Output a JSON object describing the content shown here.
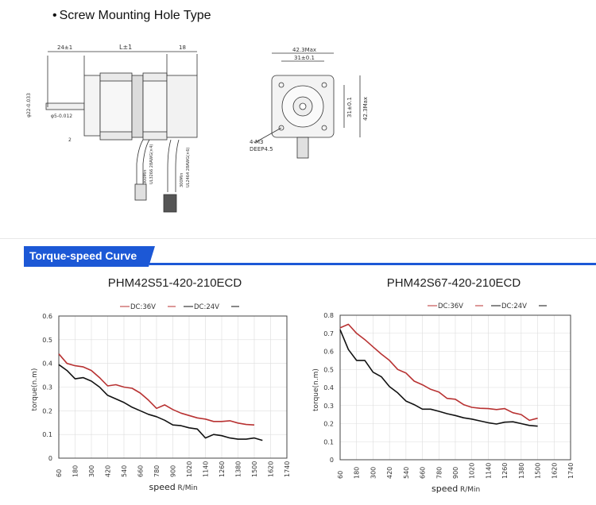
{
  "section_title": "Screw Mounting Hole Type",
  "drawing_side": {
    "dim_24": "24±1",
    "dim_L": "L±1",
    "dim_18": "18",
    "dim_phi22": "φ22-0.033",
    "dim_phi5": "φ5-0.012",
    "dim_2": "2",
    "cable_1": "300Min",
    "cable_2": "UL3266 28AWG(×4)",
    "cable_3": "300Min",
    "cable_4": "UL2464 28AWG(×6)"
  },
  "drawing_front": {
    "dim_max": "42.3Max",
    "dim_31": "31±0.1",
    "dim_31_v": "31±0.1",
    "dim_max_v": "42.3Max",
    "screw": "4-M3",
    "depth": "DEEP4.5"
  },
  "section_badge": "Torque-speed Curve",
  "colors": {
    "badge": "#1c58d6",
    "dc36": "#b83232",
    "dc24": "#111111",
    "grid": "#dddddd"
  },
  "chart_data": [
    {
      "type": "line",
      "title": "PHM42S51-420-210ECD",
      "xlabel": "speed",
      "xunit": "R/Min",
      "ylabel": "torque(n.m)",
      "categories": [
        "60",
        "180",
        "300",
        "420",
        "540",
        "660",
        "780",
        "900",
        "1020",
        "1140",
        "1260",
        "1380",
        "1500",
        "1620",
        "1740"
      ],
      "y_ticks": [
        "0",
        "0.1",
        "0.2",
        "0.3",
        "0.4",
        "0.5",
        "0.6"
      ],
      "ylim": [
        0,
        0.6
      ],
      "xlim": [
        60,
        1740
      ],
      "legend_position": "top-right",
      "series": [
        {
          "name": "DC:36V",
          "color": "#b83232",
          "x": [
            60,
            120,
            180,
            240,
            300,
            360,
            420,
            480,
            540,
            600,
            660,
            720,
            780,
            840,
            900,
            960,
            1020,
            1080,
            1140,
            1200,
            1260,
            1320,
            1380,
            1440,
            1500
          ],
          "y": [
            0.44,
            0.4,
            0.39,
            0.385,
            0.37,
            0.34,
            0.305,
            0.31,
            0.3,
            0.295,
            0.275,
            0.245,
            0.21,
            0.225,
            0.205,
            0.19,
            0.18,
            0.17,
            0.165,
            0.155,
            0.155,
            0.158,
            0.148,
            0.142,
            0.14
          ]
        },
        {
          "name": "DC:24V",
          "color": "#111111",
          "x": [
            60,
            120,
            180,
            240,
            300,
            360,
            420,
            480,
            540,
            600,
            660,
            720,
            780,
            840,
            900,
            960,
            1020,
            1080,
            1140,
            1200,
            1260,
            1320,
            1380,
            1440,
            1500,
            1560
          ],
          "y": [
            0.395,
            0.37,
            0.335,
            0.34,
            0.325,
            0.3,
            0.265,
            0.25,
            0.235,
            0.215,
            0.2,
            0.185,
            0.175,
            0.16,
            0.14,
            0.137,
            0.128,
            0.123,
            0.085,
            0.1,
            0.095,
            0.085,
            0.08,
            0.08,
            0.085,
            0.075
          ]
        }
      ]
    },
    {
      "type": "line",
      "title": "PHM42S67-420-210ECD",
      "xlabel": "speed",
      "xunit": "R/Min",
      "ylabel": "torque(n.m)",
      "categories": [
        "60",
        "180",
        "300",
        "420",
        "540",
        "660",
        "780",
        "900",
        "1020",
        "1140",
        "1260",
        "1380",
        "1500",
        "1620",
        "1740"
      ],
      "y_ticks": [
        "0",
        "0.1",
        "0.2",
        "0.3",
        "0.4",
        "0.5",
        "0.6",
        "0.7",
        "0.8"
      ],
      "ylim": [
        0,
        0.8
      ],
      "xlim": [
        60,
        1740
      ],
      "legend_position": "top-right",
      "series": [
        {
          "name": "DC:36V",
          "color": "#b83232",
          "x": [
            60,
            120,
            180,
            240,
            300,
            360,
            420,
            480,
            540,
            600,
            660,
            720,
            780,
            840,
            900,
            960,
            1020,
            1080,
            1140,
            1200,
            1260,
            1320,
            1380,
            1440,
            1500
          ],
          "y": [
            0.73,
            0.75,
            0.7,
            0.665,
            0.625,
            0.585,
            0.55,
            0.5,
            0.48,
            0.435,
            0.415,
            0.39,
            0.375,
            0.34,
            0.335,
            0.305,
            0.29,
            0.285,
            0.283,
            0.278,
            0.283,
            0.26,
            0.25,
            0.218,
            0.23
          ]
        },
        {
          "name": "DC:24V",
          "color": "#111111",
          "x": [
            60,
            120,
            180,
            240,
            300,
            360,
            420,
            480,
            540,
            600,
            660,
            720,
            780,
            840,
            900,
            960,
            1020,
            1080,
            1140,
            1200,
            1260,
            1320,
            1380,
            1440,
            1500
          ],
          "y": [
            0.72,
            0.61,
            0.55,
            0.55,
            0.485,
            0.46,
            0.405,
            0.37,
            0.325,
            0.305,
            0.28,
            0.28,
            0.268,
            0.255,
            0.245,
            0.232,
            0.225,
            0.215,
            0.205,
            0.198,
            0.208,
            0.21,
            0.2,
            0.19,
            0.186
          ]
        }
      ]
    }
  ]
}
